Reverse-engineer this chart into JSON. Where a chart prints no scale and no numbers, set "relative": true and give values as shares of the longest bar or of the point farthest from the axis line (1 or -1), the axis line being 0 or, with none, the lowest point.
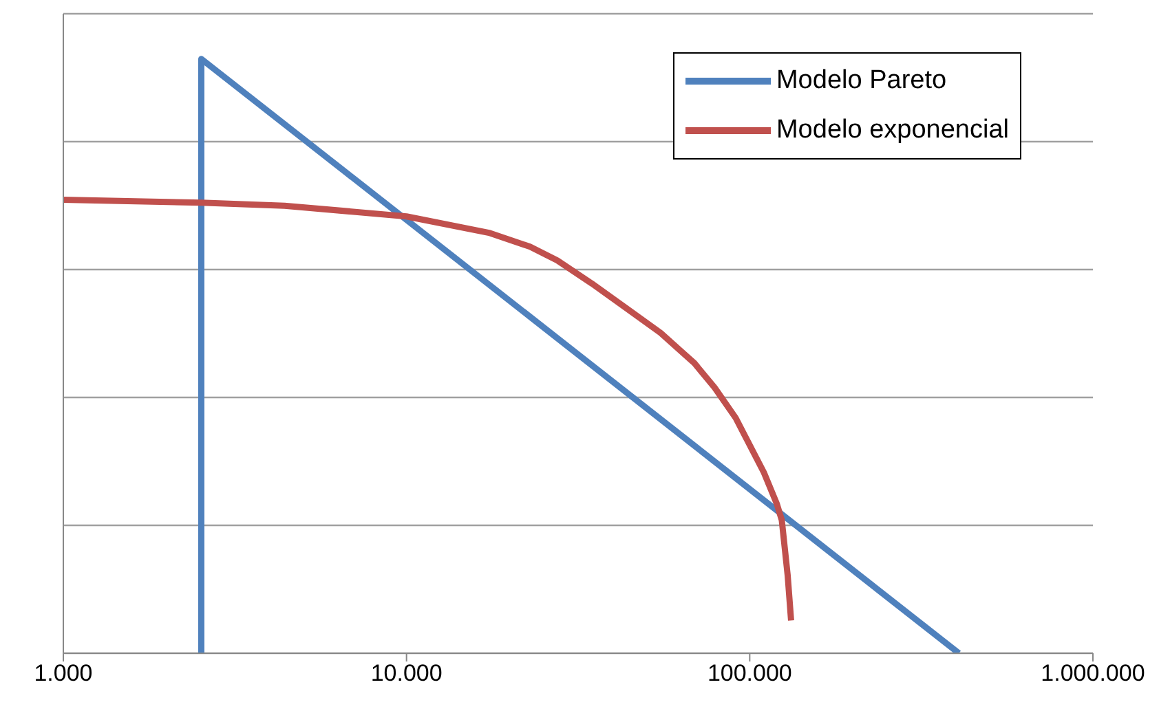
{
  "chart_data": {
    "type": "line",
    "relative": true,
    "log": "x",
    "xlim": [
      1000,
      1000000
    ],
    "xticks": [
      {
        "value": 1000,
        "label": "1.000"
      },
      {
        "value": 10000,
        "label": "10.000"
      },
      {
        "value": 100000,
        "label": "100.000"
      },
      {
        "value": 1000000,
        "label": "1.000.000"
      }
    ],
    "series": [
      {
        "name": "Modelo Pareto",
        "color": "#4f81bd",
        "x": [
          2524,
          2524,
          407000
        ],
        "values": [
          0,
          1,
          0
        ]
      },
      {
        "name": "Modelo exponencial",
        "color": "#c0504d",
        "x": [
          1000,
          2524,
          4415,
          10000,
          17500,
          22900,
          27500,
          34700,
          43600,
          55000,
          69000,
          79000,
          91000,
          110000,
          120000,
          124000,
          129000,
          132000
        ],
        "values": [
          0.763,
          0.758,
          0.753,
          0.735,
          0.707,
          0.684,
          0.661,
          0.622,
          0.581,
          0.539,
          0.488,
          0.447,
          0.396,
          0.304,
          0.251,
          0.224,
          0.131,
          0.055
        ]
      }
    ],
    "grid": "y",
    "legend": "top right",
    "marker": "none",
    "line_style": "solid"
  }
}
